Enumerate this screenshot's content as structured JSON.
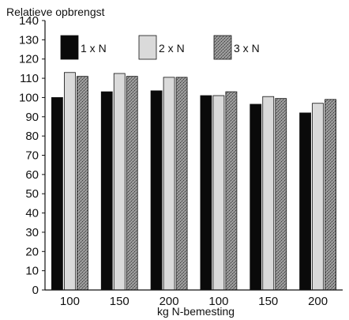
{
  "chart_data": {
    "type": "bar",
    "ylabel": "Relatieve opbrengst",
    "xlabel": "kg N-bemesting",
    "ylim": [
      0,
      140
    ],
    "yticks": [
      0,
      10,
      20,
      30,
      40,
      50,
      60,
      70,
      80,
      90,
      100,
      110,
      120,
      130,
      140
    ],
    "categories": [
      "100",
      "150",
      "200",
      "100",
      "150",
      "200"
    ],
    "series": [
      {
        "name": "1 x N",
        "values": [
          100,
          103,
          103.5,
          101,
          96.5,
          92
        ],
        "color": "#0a0a0a",
        "pattern": "solid"
      },
      {
        "name": "2 x N",
        "values": [
          113,
          112.5,
          110.5,
          101,
          100.5,
          97
        ],
        "color": "#dadada",
        "pattern": "light"
      },
      {
        "name": "3 x N",
        "values": [
          111,
          111,
          110.5,
          103,
          99.5,
          99
        ],
        "color": "#8a8a8a",
        "pattern": "stipple"
      }
    ],
    "legend_position": "top",
    "grid": false
  }
}
